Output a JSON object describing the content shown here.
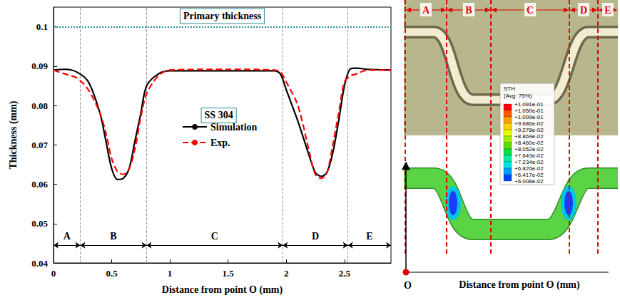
{
  "chart_data": {
    "type": "line",
    "xlabel": "Distance from point O (mm)",
    "ylabel": "Thickness (mm)",
    "xlim": [
      0,
      2.9
    ],
    "ylim": [
      0.04,
      0.105
    ],
    "xticks": [
      0,
      0.5,
      1,
      1.5,
      2,
      2.5
    ],
    "yticks": [
      0.04,
      0.05,
      0.06,
      0.07,
      0.08,
      0.09,
      0.1
    ],
    "grid": false,
    "legend": "center",
    "x": [
      0,
      0.1,
      0.2,
      0.3,
      0.4,
      0.45,
      0.5,
      0.55,
      0.6,
      0.65,
      0.7,
      0.75,
      0.8,
      0.9,
      1.0,
      1.5,
      1.9,
      1.95,
      2.0,
      2.1,
      2.2,
      2.25,
      2.3,
      2.35,
      2.4,
      2.45,
      2.5,
      2.55,
      2.6,
      2.7,
      2.9
    ],
    "series": [
      {
        "name": "Simulation",
        "color": "#000000",
        "line_style": "solid",
        "values": [
          0.089,
          0.0892,
          0.0885,
          0.086,
          0.078,
          0.071,
          0.064,
          0.0612,
          0.0615,
          0.064,
          0.071,
          0.078,
          0.085,
          0.088,
          0.0888,
          0.0888,
          0.0888,
          0.088,
          0.084,
          0.076,
          0.067,
          0.063,
          0.062,
          0.063,
          0.068,
          0.076,
          0.085,
          0.0893,
          0.0895,
          0.0892,
          0.089
        ]
      },
      {
        "name": "Exp.",
        "color": "#ff0000",
        "line_style": "dashed",
        "values": [
          0.089,
          0.088,
          0.087,
          0.084,
          0.078,
          0.073,
          0.0665,
          0.0632,
          0.0625,
          0.064,
          0.069,
          0.077,
          0.083,
          0.0875,
          0.089,
          0.0892,
          0.089,
          0.0885,
          0.086,
          0.08,
          0.068,
          0.0625,
          0.0615,
          0.063,
          0.07,
          0.078,
          0.086,
          0.0875,
          0.088,
          0.089,
          0.089
        ]
      }
    ],
    "regions": [
      {
        "label": "A",
        "from": 0,
        "to": 0.23,
        "y": 0.0445
      },
      {
        "label": "B",
        "from": 0.23,
        "to": 0.8,
        "y": 0.0445
      },
      {
        "label": "C",
        "from": 0.8,
        "to": 1.97,
        "y": 0.0445
      },
      {
        "label": "D",
        "from": 1.97,
        "to": 2.53,
        "y": 0.0445
      },
      {
        "label": "E",
        "from": 2.53,
        "to": 2.9,
        "y": 0.0445
      }
    ],
    "annotations": [
      {
        "text": "Primary thickness",
        "y": 0.1,
        "line_style": "dotted",
        "color": "#2e8b9a"
      },
      {
        "text": "SS 304",
        "x": 1.42,
        "y": 0.0775
      }
    ]
  },
  "right_panel": {
    "regions": [
      "A",
      "B",
      "C",
      "D",
      "E"
    ],
    "colorbar": {
      "title": "STH",
      "subtitle": "(Avg: 75%)",
      "labels": [
        "+1.091e-01",
        "+1.050e-01",
        "+1.009e-01",
        "+9.686e-02",
        "+9.278e-02",
        "+8.869e-02",
        "+8.460e-02",
        "+8.052e-02",
        "+7.643e-02",
        "+7.234e-02",
        "+6.826e-02",
        "+6.417e-02",
        "+6.008e-02"
      ],
      "colors": [
        "#ff0000",
        "#ff5a00",
        "#ffa000",
        "#ffd200",
        "#e6ff00",
        "#a0f000",
        "#5ae000",
        "#00e040",
        "#00f0a0",
        "#00e6e6",
        "#00a0ff",
        "#0046ff"
      ]
    },
    "axis_title": "Distance from point O (mm)",
    "origin": "O"
  }
}
